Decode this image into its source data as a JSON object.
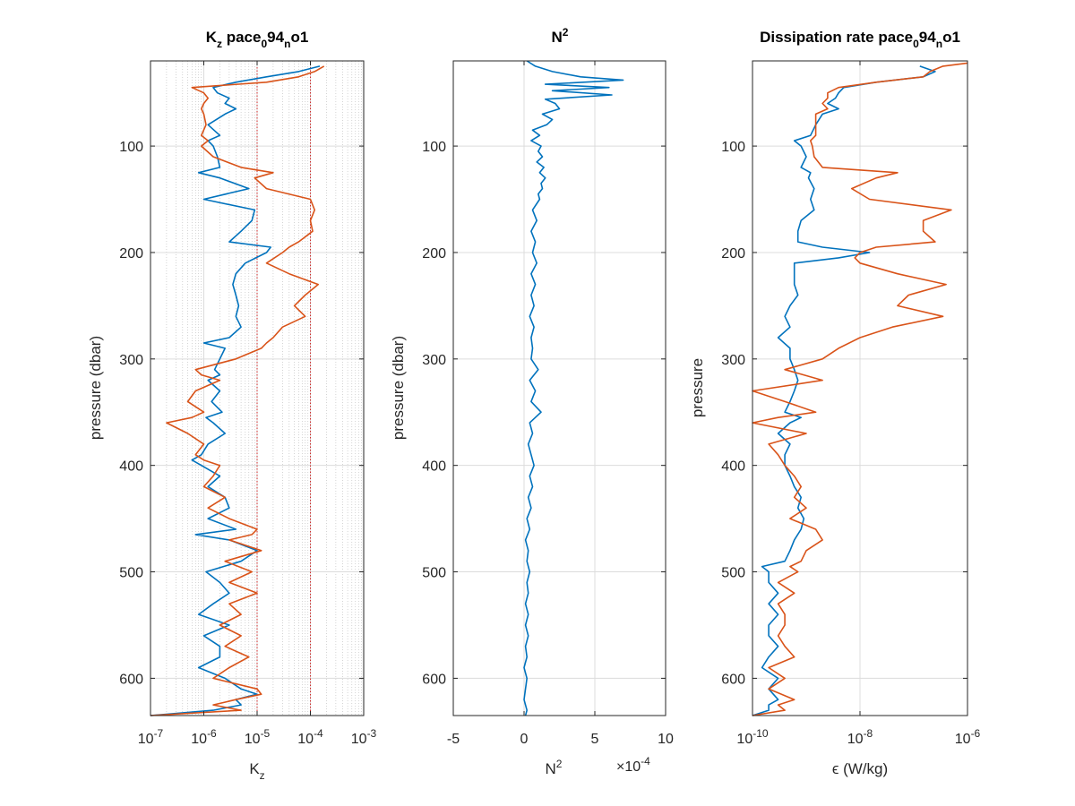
{
  "colors": {
    "series1": "#0072BD",
    "series2": "#D95319",
    "grid": "#dcdcdc",
    "axis": "#262626",
    "refline": "#d12a2a"
  },
  "chart_data": [
    {
      "type": "line",
      "title": "K_z pace_0 94_n o1",
      "title_parts": {
        "t1": "K",
        "t1_sub": "z",
        "t2": " pace",
        "t2_sub": "0",
        "t3": "94",
        "t3_sub": "n",
        "t4": "o1"
      },
      "xlabel": "K_z",
      "xlabel_parts": {
        "main": "K",
        "sub": "z"
      },
      "ylabel": "pressure (dbar)",
      "xscale": "log",
      "xlim": [
        1e-07,
        0.001
      ],
      "ylim": [
        20,
        635
      ],
      "y_reversed": true,
      "xticks": [
        1e-07,
        1e-06,
        1e-05,
        0.0001,
        0.001
      ],
      "xtick_labels": [
        {
          "base": "10",
          "exp": "-7"
        },
        {
          "base": "10",
          "exp": "-6"
        },
        {
          "base": "10",
          "exp": "-5"
        },
        {
          "base": "10",
          "exp": "-4"
        },
        {
          "base": "10",
          "exp": "-3"
        }
      ],
      "yticks": [
        100,
        200,
        300,
        400,
        500,
        600
      ],
      "ytick_labels": [
        "100",
        "200",
        "300",
        "400",
        "500",
        "600"
      ],
      "grid": true,
      "minor_grid": true,
      "reference_lines_x": [
        1e-05,
        0.0001
      ],
      "series": [
        {
          "y": [
            25,
            30,
            35,
            40,
            45,
            50,
            55,
            60,
            65,
            70,
            80,
            90,
            95,
            100,
            110,
            120,
            125,
            130,
            140,
            150,
            160,
            170,
            180,
            190,
            195,
            200,
            210,
            220,
            230,
            240,
            250,
            260,
            270,
            280,
            285,
            290,
            300,
            310,
            315,
            320,
            330,
            340,
            350,
            355,
            360,
            370,
            380,
            390,
            395,
            400,
            410,
            420,
            430,
            440,
            450,
            460,
            465,
            470,
            480,
            490,
            500,
            510,
            520,
            530,
            540,
            550,
            560,
            570,
            580,
            590,
            600,
            610,
            615,
            620,
            625,
            630,
            635
          ],
          "x": [
            0.00015,
            6e-05,
            1.5e-05,
            4e-06,
            1.5e-06,
            1.8e-06,
            3e-06,
            2.5e-06,
            4e-06,
            2.5e-06,
            1.2e-06,
            2e-06,
            1.2e-06,
            1.5e-06,
            1.8e-06,
            2e-06,
            8e-07,
            2e-06,
            7e-06,
            1e-06,
            9e-06,
            8e-06,
            5e-06,
            3e-06,
            1.8e-05,
            1.5e-05,
            6e-06,
            4e-06,
            3.5e-06,
            4e-06,
            4.5e-06,
            4e-06,
            5e-06,
            3e-06,
            1e-06,
            2.5e-06,
            2e-06,
            1.6e-06,
            2e-06,
            1.2e-06,
            2e-06,
            1.4e-06,
            2.2e-06,
            1.1e-06,
            1.5e-06,
            2.5e-06,
            1.2e-06,
            9e-07,
            6e-07,
            9e-07,
            2e-06,
            1.2e-06,
            2.5e-06,
            3e-06,
            1.2e-06,
            4e-06,
            7e-07,
            3e-06,
            1e-05,
            5e-06,
            1.1e-06,
            2e-06,
            3e-06,
            1.5e-06,
            8e-07,
            3e-06,
            1e-06,
            2e-06,
            2e-06,
            8e-07,
            2.5e-06,
            5e-06,
            1e-05,
            4e-06,
            5e-06,
            1.5e-06,
            1e-07
          ]
        },
        {
          "y": [
            25,
            30,
            35,
            40,
            45,
            50,
            55,
            60,
            65,
            70,
            80,
            90,
            95,
            100,
            110,
            120,
            125,
            130,
            140,
            150,
            160,
            170,
            180,
            190,
            195,
            200,
            210,
            220,
            230,
            240,
            250,
            260,
            270,
            280,
            285,
            290,
            300,
            310,
            315,
            320,
            330,
            340,
            350,
            355,
            360,
            370,
            380,
            390,
            395,
            400,
            410,
            420,
            430,
            440,
            450,
            460,
            465,
            470,
            480,
            490,
            500,
            510,
            520,
            530,
            540,
            550,
            560,
            570,
            580,
            590,
            600,
            610,
            615,
            620,
            625,
            630,
            635
          ],
          "x": [
            0.00018,
            0.00012,
            6e-05,
            1.5e-05,
            6e-07,
            1e-06,
            1.2e-06,
            1e-06,
            9e-07,
            1e-06,
            1.1e-06,
            9e-07,
            1.2e-06,
            9e-07,
            1.5e-06,
            5e-06,
            2e-05,
            9e-06,
            1.5e-05,
            0.0001,
            0.00012,
            0.0001,
            0.00011,
            6e-05,
            4e-05,
            3e-05,
            1.5e-05,
            4e-05,
            0.00014,
            8e-05,
            5e-05,
            8e-05,
            3e-05,
            2e-05,
            1.5e-05,
            1.2e-05,
            4e-06,
            7e-07,
            9e-07,
            2e-06,
            7e-07,
            5e-07,
            1e-06,
            6e-07,
            2e-07,
            5e-07,
            1e-06,
            7e-07,
            1e-06,
            2e-06,
            1.5e-06,
            1e-06,
            2.5e-06,
            1.2e-06,
            3e-06,
            1e-05,
            8e-06,
            3e-06,
            1.2e-05,
            2.5e-06,
            8e-06,
            3e-06,
            1e-05,
            3e-06,
            5e-06,
            2e-06,
            5e-06,
            2.5e-06,
            7e-06,
            3e-06,
            1.5e-06,
            1e-05,
            1.2e-05,
            4e-06,
            1.5e-06,
            5e-06,
            1e-07
          ]
        }
      ]
    },
    {
      "type": "line",
      "title": "N^2",
      "title_parts": {
        "main": "N",
        "sup": "2"
      },
      "xlabel": "N^2",
      "xlabel_parts": {
        "main": "N",
        "sup": "2"
      },
      "xscale_label": {
        "prefix": "×10",
        "exp": "-4"
      },
      "ylabel": "pressure (dbar)",
      "xscale": "linear",
      "x_unit_multiplier": 0.0001,
      "xlim": [
        -5,
        10
      ],
      "ylim": [
        20,
        635
      ],
      "y_reversed": true,
      "xticks": [
        -5,
        0,
        5,
        10
      ],
      "xtick_labels": [
        "-5",
        "0",
        "5",
        "10"
      ],
      "yticks": [
        100,
        200,
        300,
        400,
        500,
        600
      ],
      "ytick_labels": [
        "100",
        "200",
        "300",
        "400",
        "500",
        "600"
      ],
      "grid": true,
      "series": [
        {
          "y": [
            20,
            25,
            30,
            35,
            38,
            42,
            45,
            48,
            52,
            56,
            60,
            65,
            70,
            75,
            80,
            85,
            90,
            95,
            100,
            105,
            110,
            115,
            120,
            125,
            130,
            135,
            140,
            145,
            150,
            160,
            170,
            180,
            190,
            200,
            210,
            220,
            230,
            240,
            250,
            260,
            270,
            280,
            290,
            300,
            310,
            320,
            330,
            340,
            350,
            360,
            370,
            380,
            390,
            400,
            410,
            420,
            430,
            440,
            450,
            460,
            470,
            480,
            490,
            500,
            510,
            520,
            530,
            540,
            550,
            560,
            570,
            580,
            590,
            600,
            610,
            620,
            630,
            635
          ],
          "x": [
            0.2,
            0.8,
            2,
            4,
            7,
            1.5,
            6,
            2,
            6.2,
            1.5,
            2.2,
            2.5,
            1.3,
            2,
            1.6,
            0.6,
            1.1,
            0.5,
            1.2,
            1.0,
            1.3,
            0.9,
            1.4,
            1.1,
            1.5,
            1.2,
            1.3,
            1.0,
            1.1,
            0.6,
            0.9,
            0.5,
            0.8,
            0.6,
            0.9,
            0.5,
            0.8,
            0.5,
            0.7,
            0.4,
            0.7,
            0.5,
            0.6,
            0.5,
            1.0,
            0.4,
            0.8,
            0.5,
            1.2,
            0.4,
            0.6,
            0.3,
            0.5,
            0.7,
            0.4,
            0.6,
            0.3,
            0.5,
            0.2,
            0.4,
            0.1,
            0.3,
            0.2,
            0.4,
            0.2,
            0.3,
            0.1,
            0.3,
            0.1,
            0.3,
            0.1,
            0.2,
            0.0,
            0.2,
            0.1,
            0.0,
            0.2,
            0.1
          ]
        }
      ]
    },
    {
      "type": "line",
      "title": "Dissipation rate pace_0 94_n o1",
      "title_parts": {
        "t1": "Dissipation rate pace",
        "t1_sub": "0",
        "t2": "94",
        "t2_sub": "n",
        "t3": "o1"
      },
      "xlabel": "ϵ (W/kg)",
      "ylabel": "pressure",
      "xscale": "log",
      "xlim": [
        1e-10,
        1e-06
      ],
      "ylim": [
        20,
        635
      ],
      "y_reversed": true,
      "xticks": [
        1e-10,
        1e-08,
        1e-06
      ],
      "xtick_labels": [
        {
          "base": "10",
          "exp": "-10"
        },
        {
          "base": "10",
          "exp": "-8"
        },
        {
          "base": "10",
          "exp": "-6"
        }
      ],
      "yticks": [
        100,
        200,
        300,
        400,
        500,
        600
      ],
      "ytick_labels": [
        "100",
        "200",
        "300",
        "400",
        "500",
        "600"
      ],
      "grid": true,
      "series": [
        {
          "y": [
            25,
            30,
            35,
            40,
            45,
            50,
            55,
            60,
            65,
            70,
            80,
            90,
            95,
            100,
            110,
            120,
            125,
            130,
            140,
            150,
            160,
            170,
            180,
            190,
            195,
            200,
            205,
            210,
            220,
            230,
            240,
            250,
            260,
            270,
            280,
            290,
            300,
            310,
            320,
            330,
            340,
            350,
            355,
            360,
            370,
            380,
            390,
            400,
            410,
            420,
            430,
            440,
            450,
            460,
            470,
            480,
            490,
            495,
            500,
            510,
            520,
            530,
            540,
            550,
            560,
            570,
            580,
            590,
            600,
            610,
            620,
            625,
            630,
            635
          ],
          "x": [
            1.3e-07,
            2.5e-07,
            1.5e-07,
            2e-08,
            5e-09,
            4e-09,
            3.5e-09,
            2.5e-09,
            4e-09,
            2e-09,
            1.5e-09,
            1.2e-09,
            6e-10,
            8e-10,
            1e-09,
            8e-10,
            1.2e-09,
            1.1e-09,
            1.4e-09,
            1.2e-09,
            1.4e-09,
            8e-10,
            7e-10,
            7e-10,
            2e-09,
            1.5e-08,
            4e-09,
            6e-10,
            6e-10,
            6e-10,
            7e-10,
            5e-10,
            4e-10,
            5e-10,
            3e-10,
            5e-10,
            5e-10,
            6e-10,
            7e-10,
            6e-10,
            5e-10,
            4e-10,
            8e-10,
            5e-10,
            3e-10,
            5e-10,
            4e-10,
            4e-10,
            5e-10,
            6e-10,
            8e-10,
            7e-10,
            9e-10,
            8e-10,
            6e-10,
            5e-10,
            4e-10,
            1.5e-10,
            2e-10,
            2e-10,
            3e-10,
            2e-10,
            3e-10,
            2e-10,
            2e-10,
            3e-10,
            2e-10,
            1.5e-10,
            3e-10,
            2e-10,
            3e-10,
            2e-10,
            2e-10,
            1e-10
          ]
        },
        {
          "y": [
            22,
            25,
            30,
            35,
            40,
            45,
            50,
            55,
            60,
            65,
            70,
            80,
            90,
            95,
            100,
            110,
            120,
            125,
            130,
            140,
            150,
            160,
            170,
            180,
            190,
            195,
            200,
            205,
            210,
            220,
            230,
            240,
            250,
            260,
            270,
            280,
            290,
            300,
            310,
            320,
            330,
            340,
            350,
            355,
            360,
            370,
            380,
            390,
            400,
            410,
            420,
            430,
            440,
            450,
            460,
            470,
            480,
            490,
            495,
            500,
            510,
            520,
            530,
            540,
            550,
            560,
            570,
            580,
            590,
            600,
            610,
            620,
            625,
            630,
            635
          ],
          "x": [
            1e-06,
            3.5e-07,
            2e-07,
            1.5e-07,
            2e-08,
            4e-09,
            2.5e-09,
            2.5e-09,
            2e-09,
            2.5e-09,
            1.5e-09,
            1.5e-09,
            1.5e-09,
            1.2e-09,
            1.3e-09,
            1.4e-09,
            2e-09,
            5e-08,
            2e-08,
            7e-09,
            1.5e-08,
            5e-07,
            1.5e-07,
            1.5e-07,
            2.5e-07,
            2e-08,
            1e-08,
            8e-09,
            1e-08,
            5e-08,
            4e-07,
            8e-08,
            5e-08,
            3.5e-07,
            4e-08,
            1e-08,
            4e-09,
            2e-09,
            4e-10,
            2e-09,
            1e-10,
            4e-10,
            1.5e-09,
            3e-10,
            1e-10,
            1e-09,
            2e-10,
            3e-10,
            4e-10,
            6e-10,
            8e-10,
            6e-10,
            1e-09,
            5e-10,
            1.5e-09,
            2e-09,
            1e-09,
            8e-10,
            5e-10,
            7e-10,
            3e-10,
            6e-10,
            3e-10,
            4e-10,
            4e-10,
            3e-10,
            4e-10,
            6e-10,
            2e-10,
            4e-10,
            2e-10,
            6e-10,
            3e-10,
            4e-10,
            1e-10
          ]
        }
      ]
    }
  ]
}
